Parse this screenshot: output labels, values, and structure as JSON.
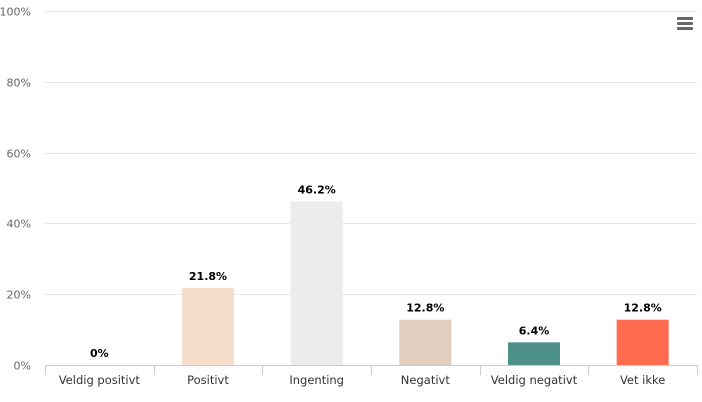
{
  "chart_data": {
    "type": "bar",
    "categories": [
      "Veldig positivt",
      "Positivt",
      "Ingenting",
      "Negativt",
      "Veldig negativt",
      "Vet ikke"
    ],
    "values": [
      0,
      21.8,
      46.2,
      12.8,
      6.4,
      12.8
    ],
    "data_labels": [
      "0%",
      "21.8%",
      "46.2%",
      "12.8%",
      "6.4%",
      "12.8%"
    ],
    "colors": [
      "#f6dcca",
      "#f6dcca",
      "#ececec",
      "#e2cebf",
      "#4e9189",
      "#fe6b4e"
    ],
    "y_ticks": [
      "0%",
      "20%",
      "40%",
      "60%",
      "80%",
      "100%"
    ],
    "ylim": [
      0,
      100
    ],
    "grid": true,
    "legend": "none"
  },
  "menu": {
    "icon": "hamburger-menu-icon"
  }
}
